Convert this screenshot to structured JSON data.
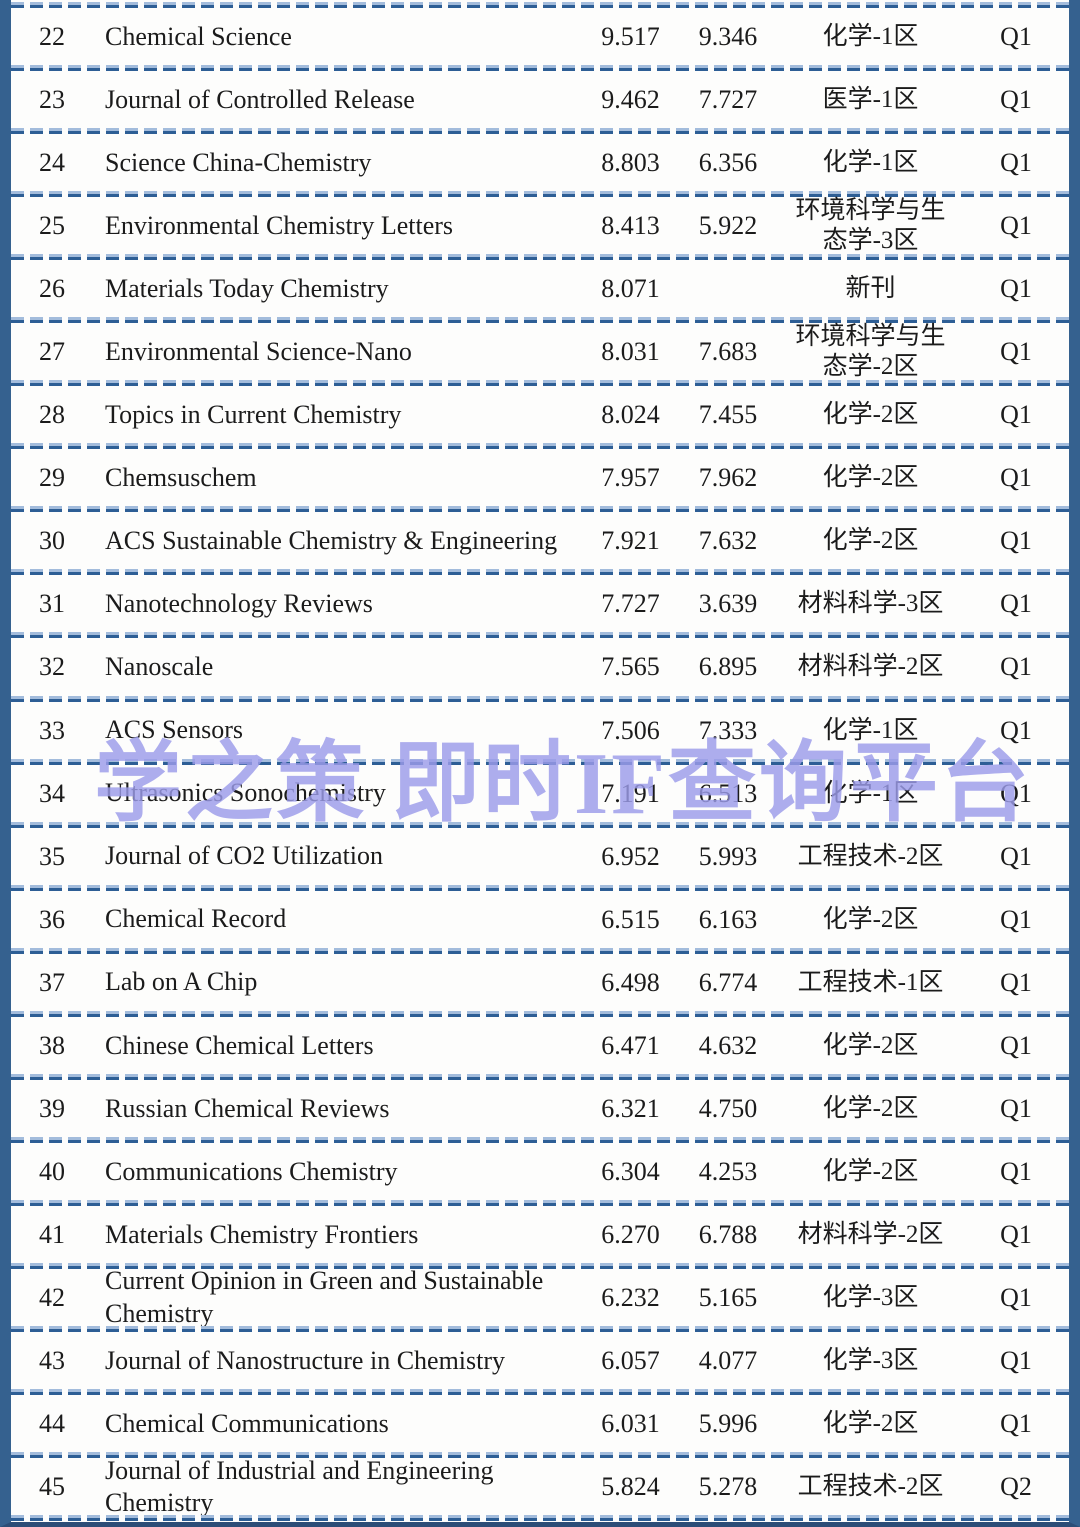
{
  "watermark": {
    "text": "学之策 即时IF查询平台",
    "color": "#9c9cea"
  },
  "colors": {
    "frame": "#35618f",
    "divider_dark": "#2d5e95",
    "divider_light": "#a3bcdc",
    "text": "#1b1b1b"
  },
  "table": {
    "rows": [
      {
        "rank": "22",
        "journal": "Chemical Science",
        "if1": "9.517",
        "if2": "9.346",
        "category": "化学-1区",
        "quartile": "Q1"
      },
      {
        "rank": "23",
        "journal": "Journal of Controlled Release",
        "if1": "9.462",
        "if2": "7.727",
        "category": "医学-1区",
        "quartile": "Q1"
      },
      {
        "rank": "24",
        "journal": "Science China-Chemistry",
        "if1": "8.803",
        "if2": "6.356",
        "category": "化学-1区",
        "quartile": "Q1"
      },
      {
        "rank": "25",
        "journal": "Environmental Chemistry Letters",
        "if1": "8.413",
        "if2": "5.922",
        "category": "环境科学与生\n态学-3区",
        "quartile": "Q1"
      },
      {
        "rank": "26",
        "journal": "Materials Today Chemistry",
        "if1": "8.071",
        "if2": "",
        "category": "新刊",
        "quartile": "Q1"
      },
      {
        "rank": "27",
        "journal": "Environmental Science-Nano",
        "if1": "8.031",
        "if2": "7.683",
        "category": "环境科学与生\n态学-2区",
        "quartile": "Q1"
      },
      {
        "rank": "28",
        "journal": "Topics in Current Chemistry",
        "if1": "8.024",
        "if2": "7.455",
        "category": "化学-2区",
        "quartile": "Q1"
      },
      {
        "rank": "29",
        "journal": "Chemsuschem",
        "if1": "7.957",
        "if2": "7.962",
        "category": "化学-2区",
        "quartile": "Q1"
      },
      {
        "rank": "30",
        "journal": "ACS Sustainable Chemistry & Engineering",
        "if1": "7.921",
        "if2": "7.632",
        "category": "化学-2区",
        "quartile": "Q1"
      },
      {
        "rank": "31",
        "journal": "Nanotechnology Reviews",
        "if1": "7.727",
        "if2": "3.639",
        "category": "材料科学-3区",
        "quartile": "Q1"
      },
      {
        "rank": "32",
        "journal": "Nanoscale",
        "if1": "7.565",
        "if2": "6.895",
        "category": "材料科学-2区",
        "quartile": "Q1"
      },
      {
        "rank": "33",
        "journal": "ACS Sensors",
        "if1": "7.506",
        "if2": "7.333",
        "category": "化学-1区",
        "quartile": "Q1"
      },
      {
        "rank": "34",
        "journal": "Ultrasonics Sonochemistry",
        "if1": "7.191",
        "if2": "6.513",
        "category": "化学-1区",
        "quartile": "Q1"
      },
      {
        "rank": "35",
        "journal": "Journal of CO2 Utilization",
        "if1": "6.952",
        "if2": "5.993",
        "category": "工程技术-2区",
        "quartile": "Q1"
      },
      {
        "rank": "36",
        "journal": "Chemical Record",
        "if1": "6.515",
        "if2": "6.163",
        "category": "化学-2区",
        "quartile": "Q1"
      },
      {
        "rank": "37",
        "journal": "Lab on A Chip",
        "if1": "6.498",
        "if2": "6.774",
        "category": "工程技术-1区",
        "quartile": "Q1"
      },
      {
        "rank": "38",
        "journal": "Chinese Chemical Letters",
        "if1": "6.471",
        "if2": "4.632",
        "category": "化学-2区",
        "quartile": "Q1"
      },
      {
        "rank": "39",
        "journal": "Russian Chemical Reviews",
        "if1": "6.321",
        "if2": "4.750",
        "category": "化学-2区",
        "quartile": "Q1"
      },
      {
        "rank": "40",
        "journal": "Communications Chemistry",
        "if1": "6.304",
        "if2": "4.253",
        "category": "化学-2区",
        "quartile": "Q1"
      },
      {
        "rank": "41",
        "journal": "Materials Chemistry Frontiers",
        "if1": "6.270",
        "if2": "6.788",
        "category": "材料科学-2区",
        "quartile": "Q1"
      },
      {
        "rank": "42",
        "journal": "Current Opinion in Green and Sustainable Chemistry",
        "if1": "6.232",
        "if2": "5.165",
        "category": "化学-3区",
        "quartile": "Q1"
      },
      {
        "rank": "43",
        "journal": "Journal of Nanostructure in Chemistry",
        "if1": "6.057",
        "if2": "4.077",
        "category": "化学-3区",
        "quartile": "Q1"
      },
      {
        "rank": "44",
        "journal": "Chemical Communications",
        "if1": "6.031",
        "if2": "5.996",
        "category": "化学-2区",
        "quartile": "Q1"
      },
      {
        "rank": "45",
        "journal": "Journal of Industrial and Engineering Chemistry",
        "if1": "5.824",
        "if2": "5.278",
        "category": "工程技术-2区",
        "quartile": "Q2"
      }
    ]
  }
}
